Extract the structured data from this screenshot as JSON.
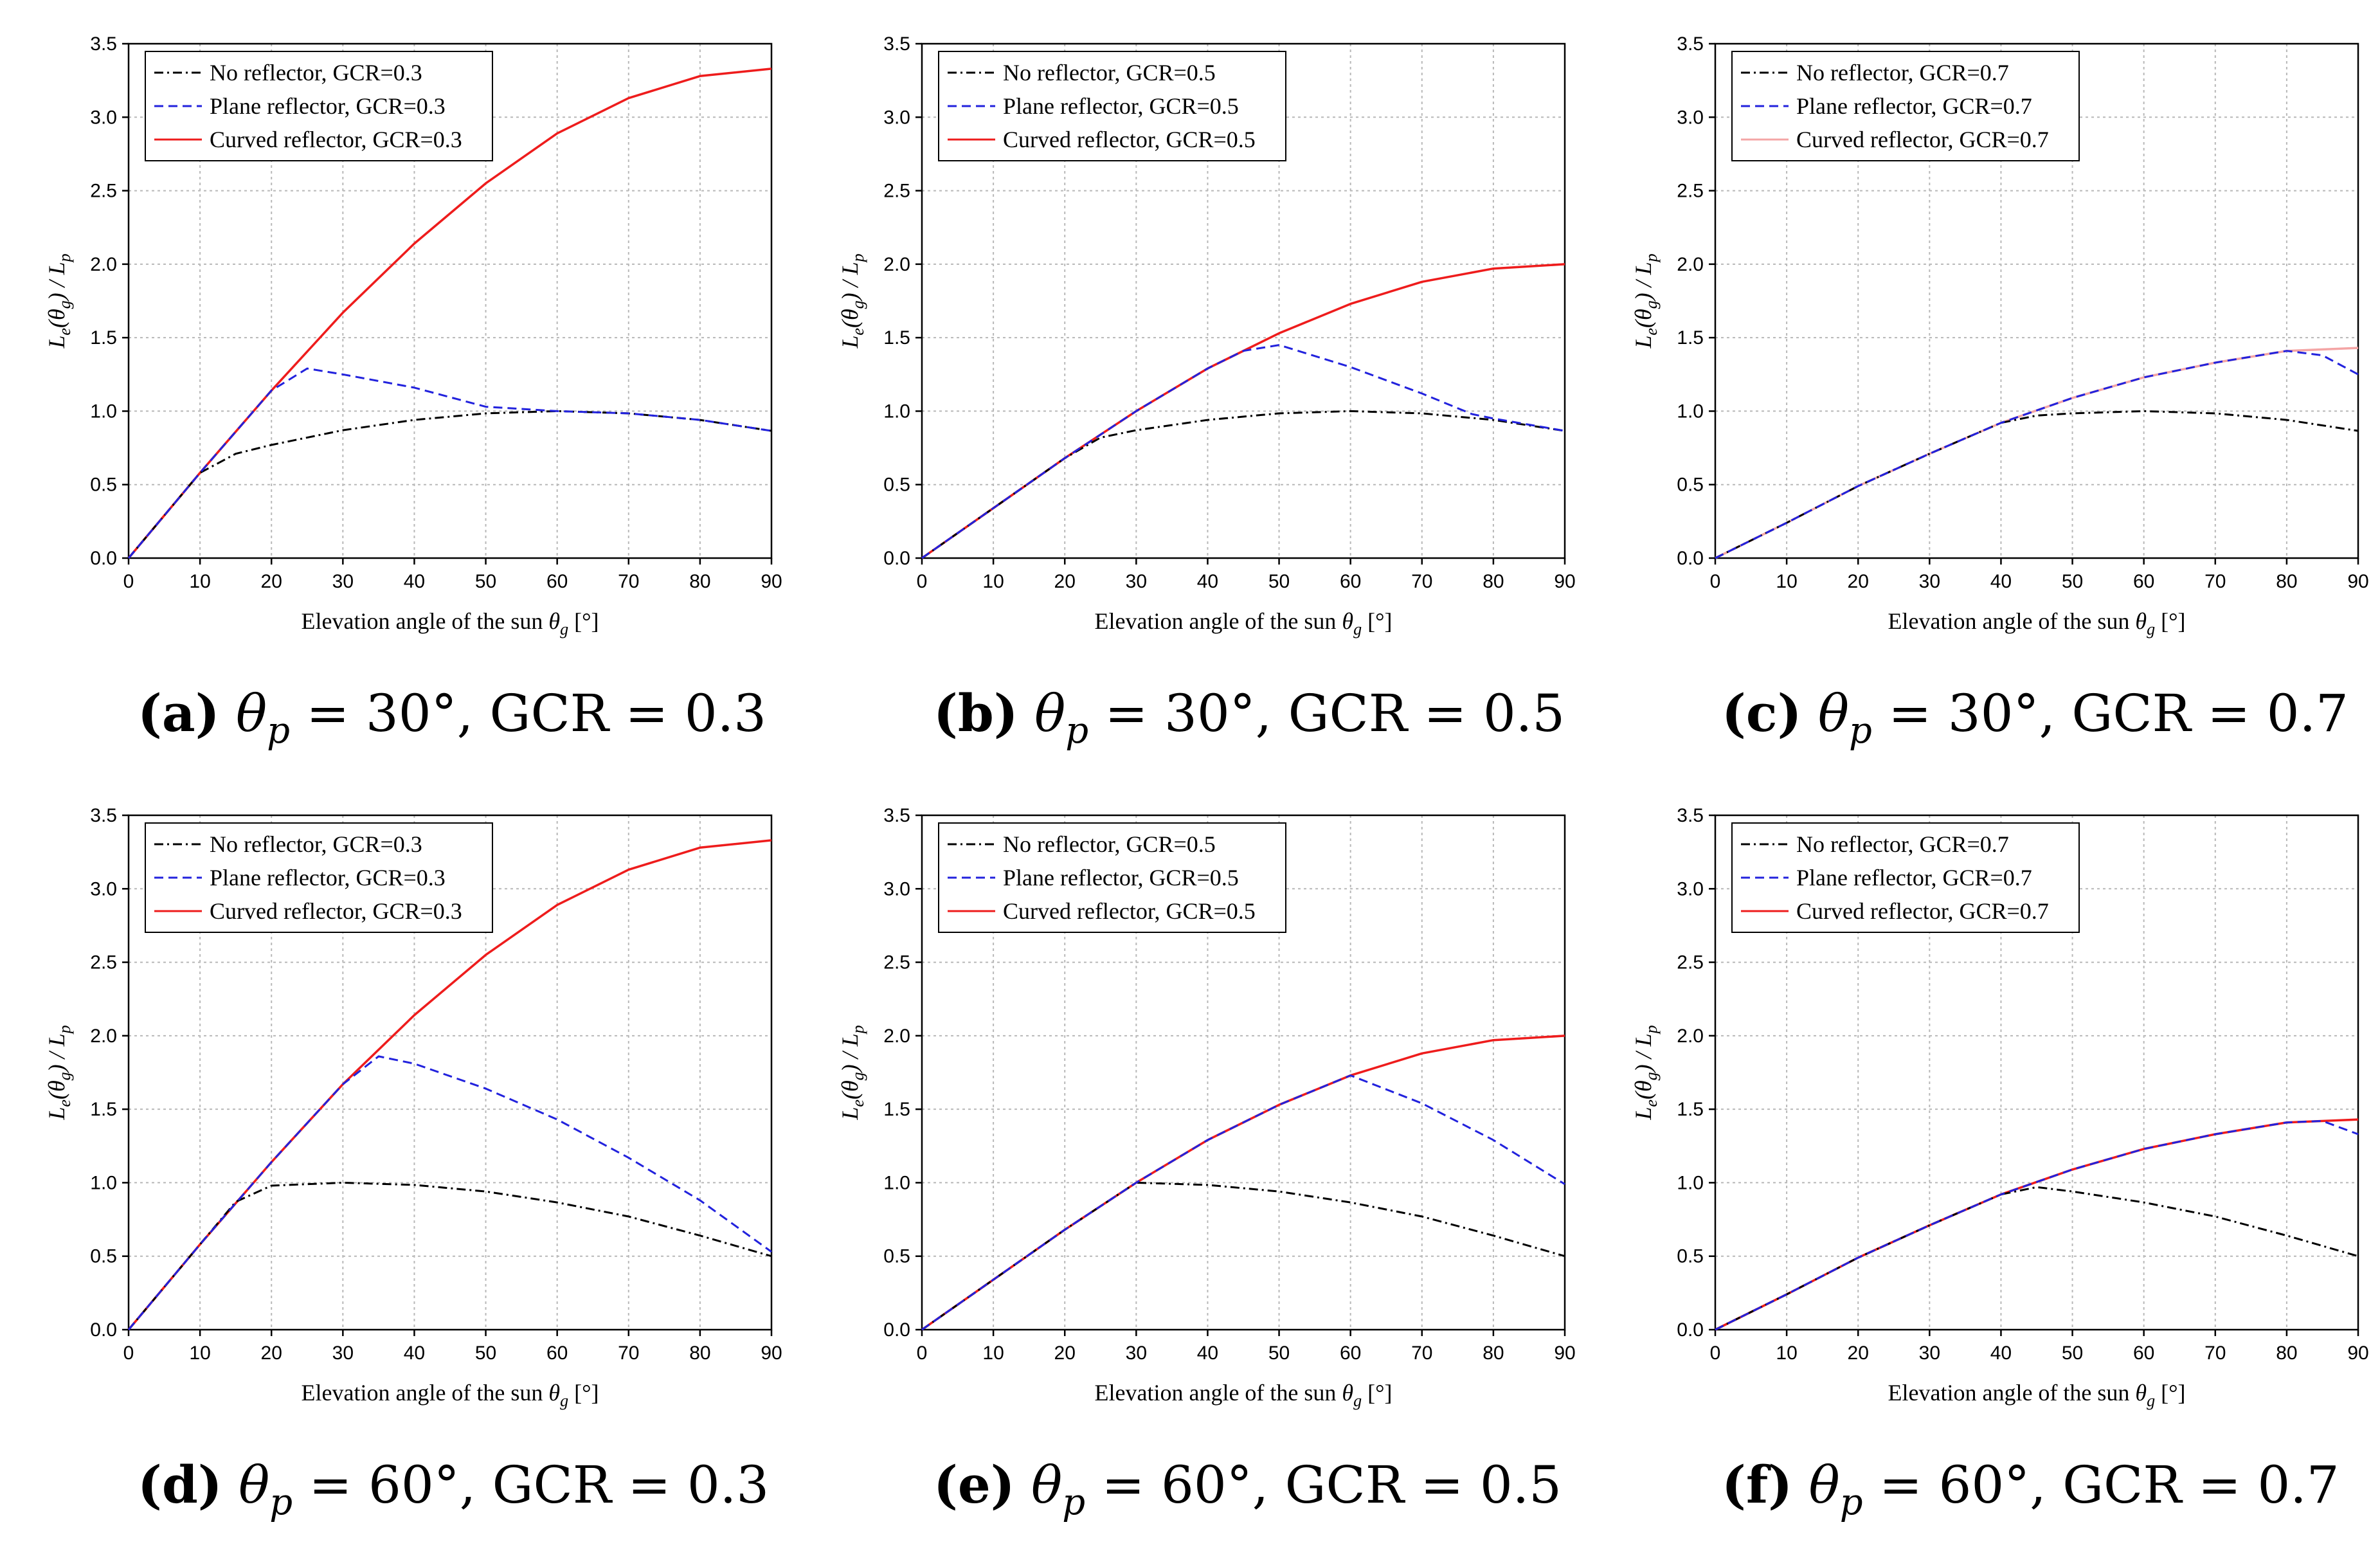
{
  "colors": {
    "no_reflector": "#000000",
    "plane_reflector": "#2222dd",
    "curved_reflector": "#ee1c1c",
    "curved_reflector_faint": "#f4a5a5",
    "grid": "#b8b8b8"
  },
  "chart_data": [
    {
      "type": "line",
      "letter": "(a)",
      "theta_p": "= 30°, GCR = 0.3",
      "xlabel": "Elevation angle of the sun",
      "xlabel_symbol": "θ",
      "xlabel_sub": "g",
      "xlabel_unit": "[°]",
      "ylabel": "Le(θg) / Lp",
      "xlim": [
        0,
        90
      ],
      "ylim": [
        0,
        3.5
      ],
      "xticks": [
        "0",
        "10",
        "20",
        "30",
        "40",
        "50",
        "60",
        "70",
        "80",
        "90"
      ],
      "yticks": [
        "0.0",
        "0.5",
        "1.0",
        "1.5",
        "2.0",
        "2.5",
        "3.0",
        "3.5"
      ],
      "series": [
        {
          "name": "No reflector, GCR=0.3",
          "style": "dashdot",
          "color": "#000000",
          "x": [
            0,
            10,
            15,
            20,
            30,
            40,
            50,
            60,
            70,
            80,
            90
          ],
          "y": [
            0,
            0.58,
            0.71,
            0.77,
            0.87,
            0.94,
            0.985,
            1.0,
            0.985,
            0.94,
            0.866
          ]
        },
        {
          "name": "Plane reflector, GCR=0.3",
          "style": "dashed",
          "color": "#2222dd",
          "x": [
            0,
            10,
            20,
            25,
            30,
            40,
            50,
            60,
            70,
            80,
            90
          ],
          "y": [
            0,
            0.58,
            1.14,
            1.29,
            1.25,
            1.16,
            1.03,
            1.0,
            0.985,
            0.94,
            0.866
          ]
        },
        {
          "name": "Curved reflector, GCR=0.3",
          "style": "solid",
          "color": "#ee1c1c",
          "x": [
            0,
            10,
            20,
            30,
            40,
            50,
            60,
            70,
            80,
            90
          ],
          "y": [
            0,
            0.58,
            1.14,
            1.67,
            2.14,
            2.55,
            2.89,
            3.13,
            3.28,
            3.33
          ]
        }
      ]
    },
    {
      "type": "line",
      "letter": "(b)",
      "theta_p": "= 30°, GCR = 0.5",
      "xlabel": "Elevation angle of the sun",
      "xlabel_symbol": "θ",
      "xlabel_sub": "g",
      "xlabel_unit": "[°]",
      "ylabel": "Le(θg) / Lp",
      "xlim": [
        0,
        90
      ],
      "ylim": [
        0,
        3.5
      ],
      "xticks": [
        "0",
        "10",
        "20",
        "30",
        "40",
        "50",
        "60",
        "70",
        "80",
        "90"
      ],
      "yticks": [
        "0.0",
        "0.5",
        "1.0",
        "1.5",
        "2.0",
        "2.5",
        "3.0",
        "3.5"
      ],
      "series": [
        {
          "name": "No reflector, GCR=0.5",
          "style": "dashdot",
          "color": "#000000",
          "x": [
            0,
            10,
            20,
            25,
            30,
            40,
            50,
            60,
            70,
            80,
            90
          ],
          "y": [
            0,
            0.34,
            0.68,
            0.82,
            0.87,
            0.94,
            0.985,
            1.0,
            0.985,
            0.94,
            0.866
          ]
        },
        {
          "name": "Plane reflector, GCR=0.5",
          "style": "dashed",
          "color": "#2222dd",
          "x": [
            0,
            10,
            20,
            30,
            40,
            45,
            50,
            60,
            70,
            77,
            80,
            90
          ],
          "y": [
            0,
            0.34,
            0.68,
            1.0,
            1.29,
            1.41,
            1.45,
            1.3,
            1.12,
            0.98,
            0.95,
            0.866
          ]
        },
        {
          "name": "Curved reflector, GCR=0.5",
          "style": "solid",
          "color": "#ee1c1c",
          "x": [
            0,
            10,
            20,
            30,
            40,
            50,
            60,
            70,
            80,
            90
          ],
          "y": [
            0,
            0.34,
            0.68,
            1.0,
            1.29,
            1.53,
            1.73,
            1.88,
            1.97,
            2.0
          ]
        }
      ]
    },
    {
      "type": "line",
      "letter": "(c)",
      "theta_p": "= 30°, GCR = 0.7",
      "xlabel": "Elevation angle of the sun",
      "xlabel_symbol": "θ",
      "xlabel_sub": "g",
      "xlabel_unit": "[°]",
      "ylabel": "Le(θg) / Lp",
      "xlim": [
        0,
        90
      ],
      "ylim": [
        0,
        3.5
      ],
      "xticks": [
        "0",
        "10",
        "20",
        "30",
        "40",
        "50",
        "60",
        "70",
        "80",
        "90"
      ],
      "yticks": [
        "0.0",
        "0.5",
        "1.0",
        "1.5",
        "2.0",
        "2.5",
        "3.0",
        "3.5"
      ],
      "series": [
        {
          "name": "No reflector, GCR=0.7",
          "style": "dashdot",
          "color": "#000000",
          "x": [
            0,
            10,
            20,
            30,
            40,
            45,
            50,
            60,
            70,
            80,
            90
          ],
          "y": [
            0,
            0.24,
            0.49,
            0.71,
            0.92,
            0.97,
            0.985,
            1.0,
            0.985,
            0.94,
            0.866
          ]
        },
        {
          "name": "Plane reflector, GCR=0.7",
          "style": "dashed",
          "color": "#2222dd",
          "x": [
            0,
            10,
            20,
            30,
            40,
            50,
            60,
            70,
            80,
            85,
            90
          ],
          "y": [
            0,
            0.24,
            0.49,
            0.71,
            0.92,
            1.09,
            1.23,
            1.33,
            1.41,
            1.38,
            1.25
          ]
        },
        {
          "name": "Curved reflector, GCR=0.7",
          "style": "solid",
          "color": "#f4a5a5",
          "x": [
            0,
            10,
            20,
            30,
            40,
            50,
            60,
            70,
            80,
            90
          ],
          "y": [
            0,
            0.24,
            0.49,
            0.71,
            0.92,
            1.09,
            1.23,
            1.33,
            1.41,
            1.43
          ]
        }
      ]
    },
    {
      "type": "line",
      "letter": "(d)",
      "theta_p": "= 60°, GCR = 0.3",
      "xlabel": "Elevation angle of the sun",
      "xlabel_symbol": "θ",
      "xlabel_sub": "g",
      "xlabel_unit": "[°]",
      "ylabel": "Le(θg) / Lp",
      "xlim": [
        0,
        90
      ],
      "ylim": [
        0,
        3.5
      ],
      "xticks": [
        "0",
        "10",
        "20",
        "30",
        "40",
        "50",
        "60",
        "70",
        "80",
        "90"
      ],
      "yticks": [
        "0.0",
        "0.5",
        "1.0",
        "1.5",
        "2.0",
        "2.5",
        "3.0",
        "3.5"
      ],
      "series": [
        {
          "name": "No reflector, GCR=0.3",
          "style": "dashdot",
          "color": "#000000",
          "x": [
            0,
            10,
            15,
            20,
            30,
            40,
            50,
            60,
            70,
            80,
            90
          ],
          "y": [
            0,
            0.58,
            0.87,
            0.98,
            1.0,
            0.985,
            0.94,
            0.866,
            0.77,
            0.64,
            0.5
          ]
        },
        {
          "name": "Plane reflector, GCR=0.3",
          "style": "dashed",
          "color": "#2222dd",
          "x": [
            0,
            10,
            20,
            30,
            35,
            40,
            50,
            60,
            70,
            80,
            90
          ],
          "y": [
            0,
            0.58,
            1.14,
            1.67,
            1.86,
            1.81,
            1.64,
            1.43,
            1.17,
            0.88,
            0.53
          ]
        },
        {
          "name": "Curved reflector, GCR=0.3",
          "style": "solid",
          "color": "#ee1c1c",
          "x": [
            0,
            10,
            20,
            30,
            40,
            50,
            60,
            70,
            80,
            90
          ],
          "y": [
            0,
            0.58,
            1.14,
            1.67,
            2.14,
            2.55,
            2.89,
            3.13,
            3.28,
            3.33
          ]
        }
      ]
    },
    {
      "type": "line",
      "letter": "(e)",
      "theta_p": "= 60°, GCR = 0.5",
      "xlabel": "Elevation angle of the sun",
      "xlabel_symbol": "θ",
      "xlabel_sub": "g",
      "xlabel_unit": "[°]",
      "ylabel": "Le(θg) / Lp",
      "xlim": [
        0,
        90
      ],
      "ylim": [
        0,
        3.5
      ],
      "xticks": [
        "0",
        "10",
        "20",
        "30",
        "40",
        "50",
        "60",
        "70",
        "80",
        "90"
      ],
      "yticks": [
        "0.0",
        "0.5",
        "1.0",
        "1.5",
        "2.0",
        "2.5",
        "3.0",
        "3.5"
      ],
      "series": [
        {
          "name": "No reflector, GCR=0.5",
          "style": "dashdot",
          "color": "#000000",
          "x": [
            0,
            10,
            20,
            30,
            40,
            50,
            60,
            70,
            80,
            90
          ],
          "y": [
            0,
            0.34,
            0.68,
            1.0,
            0.985,
            0.94,
            0.866,
            0.77,
            0.64,
            0.5
          ]
        },
        {
          "name": "Plane reflector, GCR=0.5",
          "style": "dashed",
          "color": "#2222dd",
          "x": [
            0,
            10,
            20,
            30,
            40,
            50,
            60,
            70,
            80,
            90
          ],
          "y": [
            0,
            0.34,
            0.68,
            1.0,
            1.29,
            1.53,
            1.73,
            1.54,
            1.29,
            0.99
          ]
        },
        {
          "name": "Curved reflector, GCR=0.5",
          "style": "solid",
          "color": "#ee1c1c",
          "x": [
            0,
            10,
            20,
            30,
            40,
            50,
            60,
            70,
            80,
            90
          ],
          "y": [
            0,
            0.34,
            0.68,
            1.0,
            1.29,
            1.53,
            1.73,
            1.88,
            1.97,
            2.0
          ]
        }
      ]
    },
    {
      "type": "line",
      "letter": "(f)",
      "theta_p": "= 60°, GCR = 0.7",
      "xlabel": "Elevation angle of the sun",
      "xlabel_symbol": "θ",
      "xlabel_sub": "g",
      "xlabel_unit": "[°]",
      "ylabel": "Le(θg) / Lp",
      "xlim": [
        0,
        90
      ],
      "ylim": [
        0,
        3.5
      ],
      "xticks": [
        "0",
        "10",
        "20",
        "30",
        "40",
        "50",
        "60",
        "70",
        "80",
        "90"
      ],
      "yticks": [
        "0.0",
        "0.5",
        "1.0",
        "1.5",
        "2.0",
        "2.5",
        "3.0",
        "3.5"
      ],
      "series": [
        {
          "name": "No reflector, GCR=0.7",
          "style": "dashdot",
          "color": "#000000",
          "x": [
            0,
            10,
            20,
            30,
            40,
            45,
            50,
            60,
            70,
            80,
            90
          ],
          "y": [
            0,
            0.24,
            0.49,
            0.71,
            0.92,
            0.97,
            0.94,
            0.866,
            0.77,
            0.64,
            0.5
          ]
        },
        {
          "name": "Plane reflector, GCR=0.7",
          "style": "dashed",
          "color": "#2222dd",
          "x": [
            0,
            10,
            20,
            30,
            40,
            50,
            60,
            70,
            80,
            85,
            90
          ],
          "y": [
            0,
            0.24,
            0.49,
            0.71,
            0.92,
            1.09,
            1.23,
            1.33,
            1.41,
            1.42,
            1.33
          ]
        },
        {
          "name": "Curved reflector, GCR=0.7",
          "style": "solid",
          "color": "#ee1c1c",
          "x": [
            0,
            10,
            20,
            30,
            40,
            50,
            60,
            70,
            80,
            90
          ],
          "y": [
            0,
            0.24,
            0.49,
            0.71,
            0.92,
            1.09,
            1.23,
            1.33,
            1.41,
            1.43
          ]
        }
      ]
    }
  ]
}
